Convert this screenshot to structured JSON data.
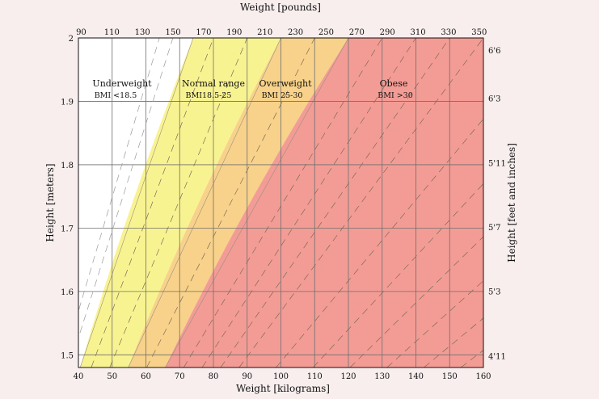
{
  "chart_data": {
    "type": "area",
    "title": "",
    "xlabel": "Weight [kilograms]",
    "x2label": "Weight [pounds]",
    "ylabel": "Height [meters]",
    "y2label": "Height [feet and inches]",
    "xlim": [
      40,
      160
    ],
    "ylim": [
      1.48,
      2.0
    ],
    "x_ticks": [
      "40",
      "50",
      "60",
      "70",
      "80",
      "90",
      "100",
      "110",
      "120",
      "130",
      "140",
      "150",
      "160"
    ],
    "x2_ticks": [
      "90",
      "110",
      "130",
      "150",
      "170",
      "190",
      "210",
      "230",
      "250",
      "270",
      "290",
      "310",
      "330",
      "350"
    ],
    "y_ticks": [
      "1.5",
      "1.6",
      "1.7",
      "1.8",
      "1.9",
      "2"
    ],
    "y2_ticks": [
      "4'11",
      "5'3",
      "5'7",
      "5'11",
      "6'3",
      "6'6"
    ],
    "grid": true,
    "zones": [
      {
        "name": "Underweight",
        "range": "BMI <18.5",
        "bmi_min": 0,
        "bmi_max": 18.5,
        "color": "#ffffff"
      },
      {
        "name": "Normal range",
        "range": "BMI18.5-25",
        "bmi_min": 18.5,
        "bmi_max": 25,
        "color": "#f8f391"
      },
      {
        "name": "Overweight",
        "range": "BMI 25-30",
        "bmi_min": 25,
        "bmi_max": 30,
        "color": "#f8d28a"
      },
      {
        "name": "Obese",
        "range": "BMI >30",
        "bmi_min": 30,
        "bmi_max": 100,
        "color": "#f39c95"
      }
    ],
    "dashed_bmi_lines": [
      16,
      17,
      20,
      22.5,
      27.5,
      32.5,
      35,
      37.5,
      40,
      45,
      50,
      55,
      60,
      65,
      70
    ]
  }
}
